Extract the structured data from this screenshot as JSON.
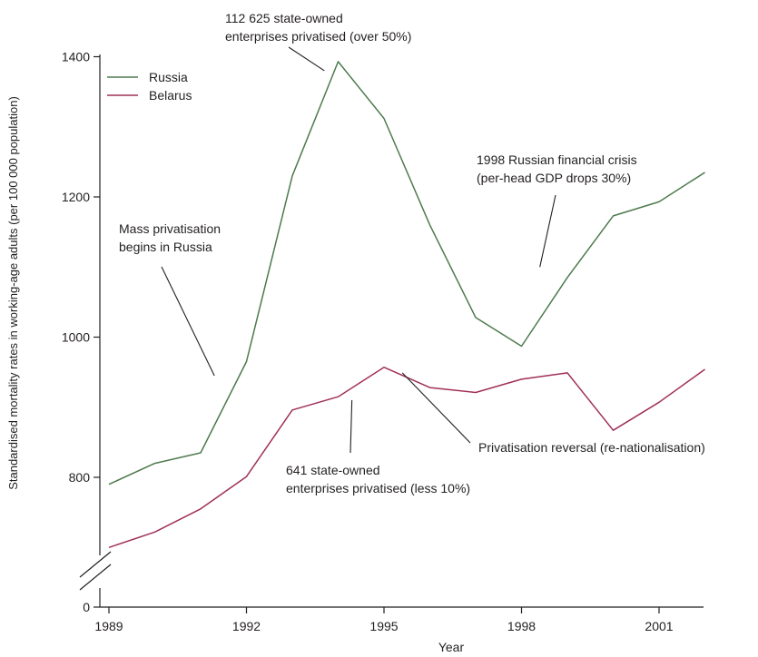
{
  "chart_data": {
    "type": "line",
    "title": "",
    "xlabel": "Year",
    "ylabel": "Standardised mortality rates in working-age adults (per 100 000 population)",
    "x": [
      1989,
      1990,
      1991,
      1992,
      1993,
      1994,
      1995,
      1996,
      1997,
      1998,
      1999,
      2000,
      2001,
      2002
    ],
    "xlim": [
      1989,
      2002
    ],
    "xticks": [
      1989,
      1992,
      1995,
      1998,
      2001
    ],
    "ylim": [
      700,
      1400
    ],
    "yticks": [
      0,
      800,
      1000,
      1200,
      1400
    ],
    "axis_break": true,
    "grid": false,
    "legend_position": "top-left",
    "series": [
      {
        "name": "Russia",
        "color": "#4d7a4d",
        "values": [
          790,
          820,
          835,
          965,
          1230,
          1393,
          1312,
          1160,
          1028,
          987,
          1085,
          1173,
          1193,
          1235
        ]
      },
      {
        "name": "Belarus",
        "color": "#a0305a",
        "values": [
          700,
          722,
          755,
          801,
          896,
          915,
          957,
          928,
          921,
          940,
          949,
          867,
          907,
          954
        ]
      }
    ],
    "annotations": [
      {
        "id": "mass",
        "lines": [
          "Mass privatisation",
          "begins in Russia"
        ],
        "points_to": {
          "x": 1991.3,
          "y": 945
        }
      },
      {
        "id": "peak",
        "lines": [
          "112 625 state-owned",
          "enterprises privatised (over 50%)"
        ],
        "points_to": {
          "x": 1993.7,
          "y": 1380
        }
      },
      {
        "id": "crisis",
        "lines": [
          "1998 Russian financial crisis",
          "(per-head GDP drops 30%)"
        ],
        "points_to": {
          "x": 1998.4,
          "y": 1100
        }
      },
      {
        "id": "belarus-few",
        "lines": [
          "641 state-owned",
          "enterprises privatised (less 10%)"
        ],
        "points_to": {
          "x": 1994.3,
          "y": 910
        }
      },
      {
        "id": "reversal",
        "lines": [
          "Privatisation reversal (re-nationalisation)"
        ],
        "points_to": {
          "x": 1995.4,
          "y": 949
        }
      }
    ]
  }
}
